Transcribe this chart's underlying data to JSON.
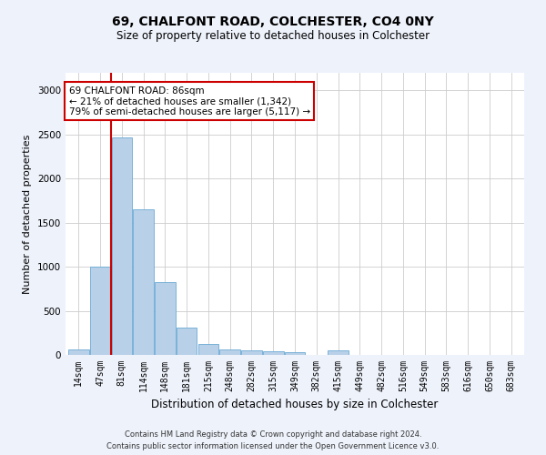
{
  "title_line1": "69, CHALFONT ROAD, COLCHESTER, CO4 0NY",
  "title_line2": "Size of property relative to detached houses in Colchester",
  "xlabel": "Distribution of detached houses by size in Colchester",
  "ylabel": "Number of detached properties",
  "bar_labels": [
    "14sqm",
    "47sqm",
    "81sqm",
    "114sqm",
    "148sqm",
    "181sqm",
    "215sqm",
    "248sqm",
    "282sqm",
    "315sqm",
    "349sqm",
    "382sqm",
    "415sqm",
    "449sqm",
    "482sqm",
    "516sqm",
    "549sqm",
    "583sqm",
    "616sqm",
    "650sqm",
    "683sqm"
  ],
  "bar_values": [
    60,
    1000,
    2470,
    1650,
    830,
    310,
    125,
    60,
    50,
    40,
    30,
    0,
    50,
    0,
    0,
    0,
    0,
    0,
    0,
    0,
    0
  ],
  "bar_color": "#b8d0e8",
  "bar_edge_color": "#6aaad4",
  "subject_bar_index": 2,
  "subject_line_color": "#cc0000",
  "ylim": [
    0,
    3200
  ],
  "yticks": [
    0,
    500,
    1000,
    1500,
    2000,
    2500,
    3000
  ],
  "annotation_text": "69 CHALFONT ROAD: 86sqm\n← 21% of detached houses are smaller (1,342)\n79% of semi-detached houses are larger (5,117) →",
  "annotation_box_color": "#ffffff",
  "annotation_box_edge": "#cc0000",
  "footer_line1": "Contains HM Land Registry data © Crown copyright and database right 2024.",
  "footer_line2": "Contains public sector information licensed under the Open Government Licence v3.0.",
  "bg_color": "#eef2fb",
  "plot_bg_color": "#ffffff",
  "grid_color": "#cccccc",
  "title1_fontsize": 10,
  "title2_fontsize": 8.5,
  "ylabel_fontsize": 8,
  "xlabel_fontsize": 8.5,
  "tick_fontsize": 7,
  "footer_fontsize": 6,
  "annot_fontsize": 7.5
}
